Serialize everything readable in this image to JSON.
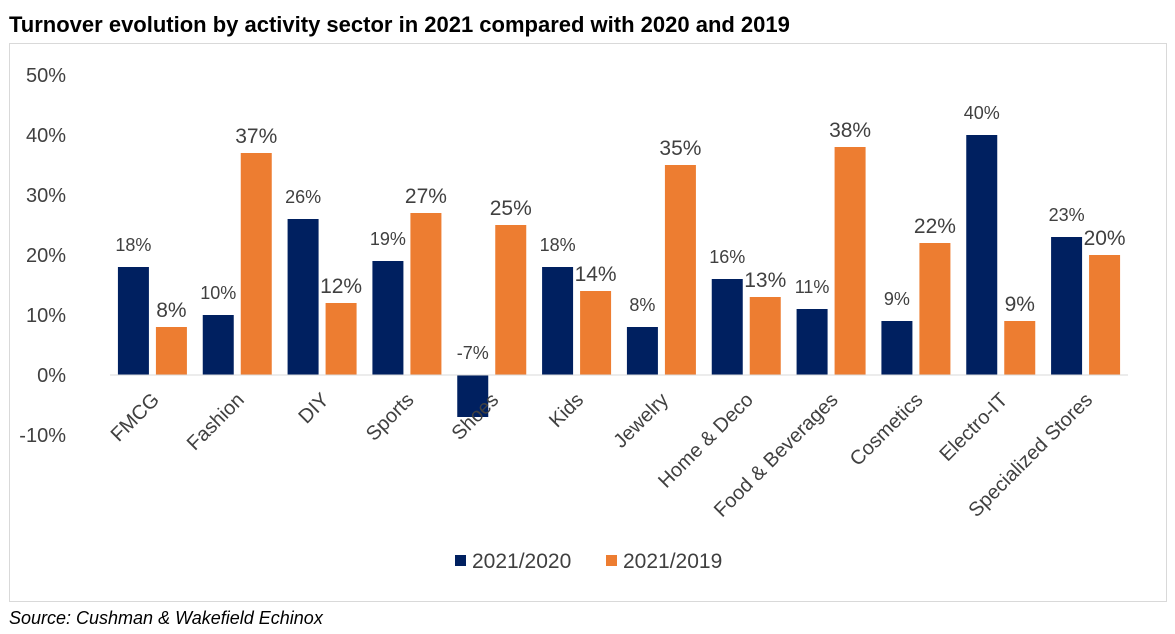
{
  "title": "Turnover evolution by activity sector in 2021 compared with 2020 and 2019",
  "source": "Source: Cushman & Wakefield Echinox",
  "chart_data": {
    "type": "bar",
    "title": "Turnover evolution by activity sector in 2021 compared with 2020 and 2019",
    "xlabel": "",
    "ylabel": "",
    "ylim": [
      -10,
      50
    ],
    "yticks": [
      -10,
      0,
      10,
      20,
      30,
      40,
      50
    ],
    "ytick_labels": [
      "-10%",
      "0%",
      "10%",
      "20%",
      "30%",
      "40%",
      "50%"
    ],
    "grid": false,
    "legend_position": "bottom",
    "categories": [
      "FMCG",
      "Fashion",
      "DIY",
      "Sports",
      "Shoes",
      "Kids",
      "Jewelry",
      "Home & Deco",
      "Food & Beverages",
      "Cosmetics",
      "Electro-IT",
      "Specialized Stores"
    ],
    "series": [
      {
        "name": "2021/2020",
        "color": "#002060",
        "values": [
          18,
          10,
          26,
          19,
          -7,
          18,
          8,
          16,
          11,
          9,
          40,
          23
        ],
        "labels": [
          "18%",
          "10%",
          "26%",
          "19%",
          "-7%",
          "18%",
          "8%",
          "16%",
          "11%",
          "9%",
          "40%",
          "23%"
        ]
      },
      {
        "name": "2021/2019",
        "color": "#ED7D31",
        "values": [
          8,
          37,
          12,
          27,
          25,
          14,
          35,
          13,
          38,
          22,
          9,
          20
        ],
        "labels": [
          "8%",
          "37%",
          "12%",
          "27%",
          "25%",
          "14%",
          "35%",
          "13%",
          "38%",
          "22%",
          "9%",
          "20%"
        ]
      }
    ]
  }
}
